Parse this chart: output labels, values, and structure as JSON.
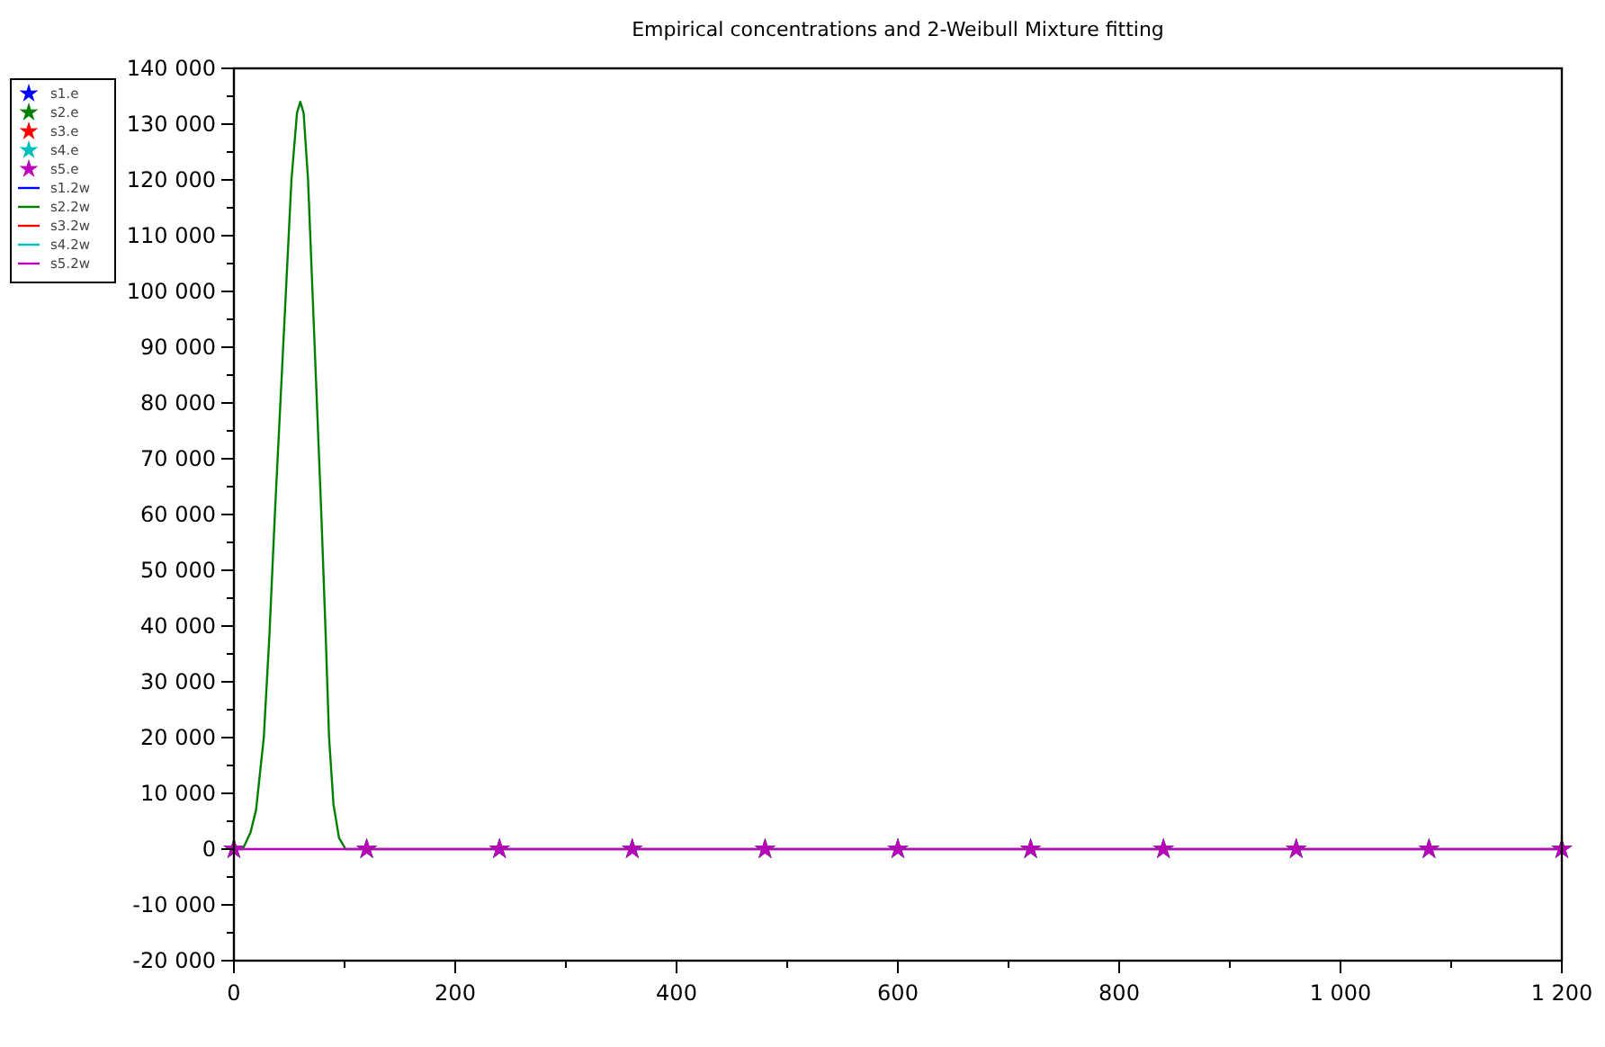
{
  "chart_data": {
    "type": "scatter",
    "title": "Empirical concentrations and 2-Weibull Mixture fitting",
    "xlim": [
      0,
      1200
    ],
    "xticks": [
      0,
      200,
      400,
      600,
      800,
      {
        "value": 1000,
        "label": "1 000"
      },
      {
        "value": 1200,
        "label": "1 200"
      }
    ],
    "ylim": [
      -20000,
      140000
    ],
    "yticks": [
      {
        "value": -20000,
        "label": "-20 000"
      },
      {
        "value": -10000,
        "label": "-10 000"
      },
      0,
      {
        "value": 10000,
        "label": "10 000"
      },
      {
        "value": 20000,
        "label": "20 000"
      },
      {
        "value": 30000,
        "label": "30 000"
      },
      {
        "value": 40000,
        "label": "40 000"
      },
      {
        "value": 50000,
        "label": "50 000"
      },
      {
        "value": 60000,
        "label": "60 000"
      },
      {
        "value": 70000,
        "label": "70 000"
      },
      {
        "value": 80000,
        "label": "80 000"
      },
      {
        "value": 90000,
        "label": "90 000"
      },
      {
        "value": 100000,
        "label": "100 000"
      },
      {
        "value": 110000,
        "label": "110 000"
      },
      {
        "value": 120000,
        "label": "120 000"
      },
      {
        "value": 130000,
        "label": "130 000"
      },
      {
        "value": 140000,
        "label": "140 000"
      }
    ],
    "grid": false,
    "legend": "top left",
    "marker": "star",
    "series": [
      {
        "name": "s1.e",
        "color": "#0000ff",
        "x": [
          0,
          120,
          240,
          360,
          480,
          600,
          720,
          840,
          960,
          1080,
          1200
        ],
        "values": [
          0,
          0,
          0,
          0,
          0,
          0,
          0,
          0,
          0,
          0,
          0
        ]
      },
      {
        "name": "s2.e",
        "color": "#008000",
        "x": [
          0,
          120,
          240,
          360,
          480,
          600,
          720,
          840,
          960,
          1080,
          1200
        ],
        "values": [
          0,
          0,
          0,
          0,
          0,
          0,
          0,
          0,
          0,
          0,
          0
        ]
      },
      {
        "name": "s3.e",
        "color": "#ff0000",
        "x": [
          0,
          120,
          240,
          360,
          480,
          600,
          720,
          840,
          960,
          1080,
          1200
        ],
        "values": [
          0,
          0,
          0,
          0,
          0,
          0,
          0,
          0,
          0,
          0,
          0
        ]
      },
      {
        "name": "s4.e",
        "color": "#00bfbf",
        "x": [
          0,
          120,
          240,
          360,
          480,
          600,
          720,
          840,
          960,
          1080,
          1200
        ],
        "values": [
          0,
          0,
          0,
          0,
          0,
          0,
          0,
          0,
          0,
          0,
          0
        ]
      },
      {
        "name": "s5.e",
        "color": "#bf00bf",
        "x": [
          0,
          120,
          240,
          360,
          480,
          600,
          720,
          840,
          960,
          1080,
          1200
        ],
        "values": [
          0,
          0,
          0,
          0,
          0,
          0,
          0,
          0,
          0,
          0,
          0
        ]
      },
      {
        "name": "s1.2w",
        "type": "line",
        "marker": "none",
        "color": "#0000ff"
      },
      {
        "name": "s2.2w",
        "type": "line",
        "marker": "none",
        "color": "#008000",
        "x": [
          0,
          8,
          15,
          20,
          27,
          32,
          37,
          42,
          47,
          52,
          57,
          60,
          63,
          67,
          71,
          75,
          79,
          83,
          86,
          90,
          95,
          101,
          1200
        ],
        "values": [
          0,
          0,
          3000,
          7000,
          20000,
          38000,
          60000,
          80000,
          100000,
          120000,
          132000,
          134000,
          132000,
          120000,
          100000,
          80000,
          60000,
          38000,
          20000,
          8000,
          2000,
          0,
          0
        ]
      },
      {
        "name": "s3.2w",
        "type": "line",
        "marker": "none",
        "color": "#ff0000"
      },
      {
        "name": "s4.2w",
        "type": "line",
        "marker": "none",
        "color": "#00bfbf"
      },
      {
        "name": "s5.2w",
        "type": "line",
        "marker": "none",
        "color": "#bf00bf",
        "x": [
          0,
          1200
        ],
        "values": [
          0,
          0
        ]
      }
    ]
  }
}
